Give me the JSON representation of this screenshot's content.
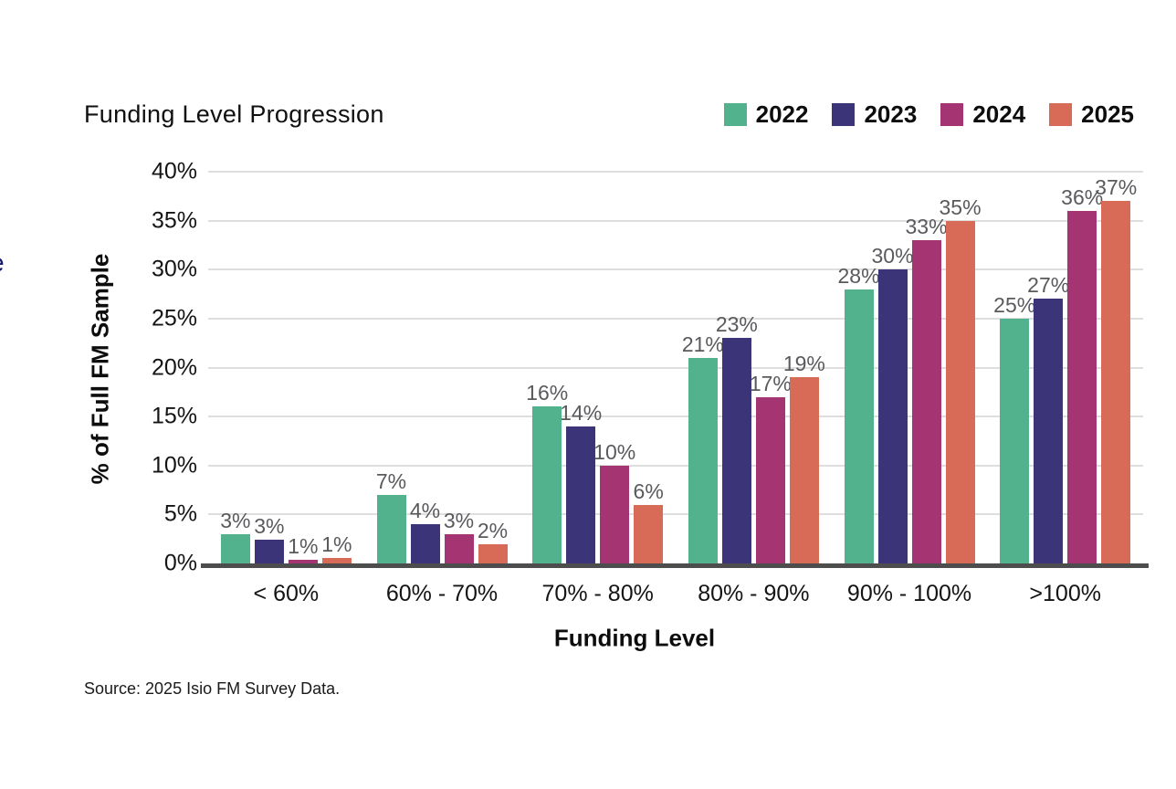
{
  "page": {
    "title": "Funding Level Progression",
    "source_note": "Source: 2025 Isio FM Survey Data.",
    "edge_artifact_text": "e"
  },
  "chart_data": {
    "type": "bar",
    "title": "Funding Level Progression",
    "xlabel": "Funding Level",
    "ylabel": "% of Full FM Sample",
    "ylim": [
      0,
      40
    ],
    "ytick_step": 5,
    "ytick_suffix": "%",
    "grid": true,
    "legend_position": "top-right",
    "categories": [
      "< 60%",
      "60% - 70%",
      "70% - 80%",
      "80% - 90%",
      "90% - 100%",
      ">100%"
    ],
    "series": [
      {
        "name": "2022",
        "color": "#53B28E",
        "values": [
          3,
          7,
          16,
          21,
          28,
          25
        ]
      },
      {
        "name": "2023",
        "color": "#3B3478",
        "values": [
          3,
          4,
          14,
          23,
          30,
          27
        ],
        "render_heights": [
          2.4,
          4,
          14,
          23,
          30,
          27
        ]
      },
      {
        "name": "2024",
        "color": "#A53572",
        "values": [
          1,
          3,
          10,
          17,
          33,
          36
        ],
        "render_heights": [
          0.4,
          3,
          10,
          17,
          33,
          36
        ]
      },
      {
        "name": "2025",
        "color": "#D76B58",
        "values": [
          1,
          2,
          6,
          19,
          35,
          37
        ],
        "render_heights": [
          0.6,
          2,
          6,
          19,
          35,
          37
        ]
      }
    ],
    "value_suffix": "%"
  },
  "colors": {
    "grid": "#DEDEDE",
    "axis": "#4D4D4D",
    "data_label": "#5A5A5E",
    "text": "#141414"
  }
}
